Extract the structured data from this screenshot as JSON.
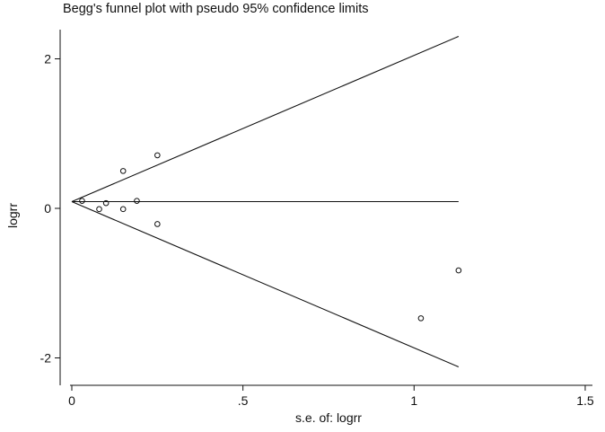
{
  "chart_data": {
    "type": "scatter",
    "title": "Begg's funnel plot with pseudo 95% confidence limits",
    "xlabel": "s.e. of: logrr",
    "ylabel": "logrr",
    "xlim": [
      0,
      1.5
    ],
    "ylim": [
      -2.3,
      2.3
    ],
    "xticks": [
      0,
      0.5,
      1,
      1.5
    ],
    "xtick_labels": [
      "0",
      ".5",
      "1",
      "1.5"
    ],
    "yticks": [
      -2,
      0,
      2
    ],
    "ytick_labels": [
      "-2",
      "0",
      "2"
    ],
    "grid": false,
    "pooled_estimate": 0.09,
    "funnel": {
      "se_max": 1.13,
      "lower_at_se_max": -2.12,
      "upper_at_se_max": 2.3
    },
    "points": [
      {
        "x": 0.03,
        "y": 0.1
      },
      {
        "x": 0.08,
        "y": -0.01
      },
      {
        "x": 0.1,
        "y": 0.07
      },
      {
        "x": 0.15,
        "y": 0.5
      },
      {
        "x": 0.15,
        "y": -0.01
      },
      {
        "x": 0.19,
        "y": 0.1
      },
      {
        "x": 0.25,
        "y": 0.71
      },
      {
        "x": 0.25,
        "y": -0.21
      },
      {
        "x": 1.02,
        "y": -1.47
      },
      {
        "x": 1.13,
        "y": -0.83
      }
    ]
  }
}
